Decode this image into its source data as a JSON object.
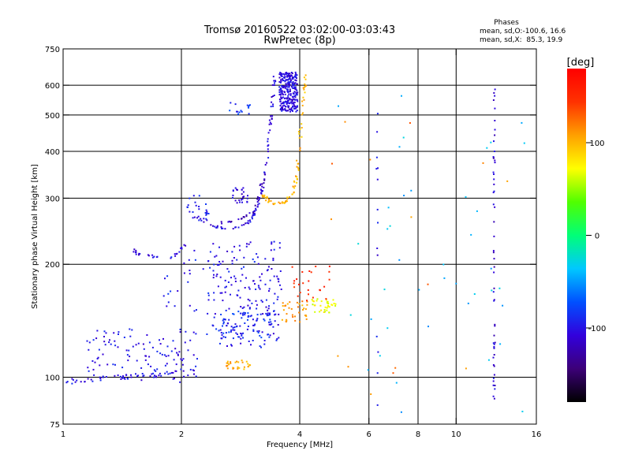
{
  "chart_data": {
    "type": "scatter",
    "title": "Tromsø 20160522 03:02:00-03:03:43",
    "subtitle": "RwPretec (8p)",
    "xlabel": "Frequency [MHz]",
    "ylabel": "Stationary phase Virtual Height [km]",
    "x_scale": "log",
    "y_scale": "log",
    "xlim": [
      1,
      16
    ],
    "ylim": [
      75,
      750
    ],
    "x_ticks": [
      1,
      2,
      4,
      6,
      8,
      10,
      16
    ],
    "y_ticks": [
      75,
      100,
      200,
      300,
      400,
      500,
      600,
      750
    ],
    "grid": true,
    "phase_box": {
      "title": "Phases",
      "line_o": "mean, sd,O:-100.6, 16.6",
      "line_x": "mean, sd,X:  85.3, 19.9"
    },
    "colorbar": {
      "label": "[deg]",
      "range": [
        -180,
        180
      ],
      "ticks": [
        100,
        0,
        -100
      ],
      "palette": [
        "#000000",
        "#3c0078",
        "#3200dc",
        "#0050ff",
        "#00c8ff",
        "#00ff78",
        "#50ff00",
        "#ffff00",
        "#ffa000",
        "#ff3200",
        "#ff0000"
      ]
    },
    "traces": [
      {
        "kind": "curve",
        "pts": [
          [
            1.0,
            97
          ],
          [
            1.1,
            98
          ],
          [
            1.2,
            99
          ],
          [
            1.3,
            100
          ],
          [
            1.4,
            100
          ],
          [
            1.5,
            101
          ],
          [
            1.7,
            101
          ],
          [
            1.9,
            102
          ],
          [
            2.0,
            104
          ]
        ],
        "phase": -100,
        "n": 50,
        "spread": 0.03
      },
      {
        "kind": "cloud",
        "x": [
          1.15,
          2.2
        ],
        "y": [
          97,
          135
        ],
        "phase": -100,
        "n": 120
      },
      {
        "kind": "curve",
        "pts": [
          [
            1.5,
            222
          ],
          [
            1.55,
            212
          ],
          [
            1.65,
            210
          ],
          [
            1.75,
            211
          ]
        ],
        "phase": -110,
        "n": 16,
        "spread": 0.02
      },
      {
        "kind": "curve",
        "pts": [
          [
            1.85,
            208
          ],
          [
            1.95,
            214
          ],
          [
            2.05,
            228
          ]
        ],
        "phase": -110,
        "n": 10,
        "spread": 0.02
      },
      {
        "kind": "curve",
        "pts": [
          [
            2.1,
            272
          ],
          [
            2.3,
            257
          ],
          [
            2.6,
            248
          ],
          [
            2.8,
            250
          ],
          [
            3.0,
            262
          ],
          [
            3.1,
            280
          ],
          [
            3.2,
            310
          ],
          [
            3.3,
            380
          ],
          [
            3.35,
            450
          ],
          [
            3.4,
            520
          ],
          [
            3.45,
            630
          ]
        ],
        "phase": -105,
        "n": 90,
        "spread": 0.015
      },
      {
        "kind": "curve",
        "pts": [
          [
            2.4,
            258
          ],
          [
            2.8,
            262
          ],
          [
            3.0,
            272
          ],
          [
            3.15,
            300
          ],
          [
            3.25,
            350
          ]
        ],
        "phase": -120,
        "n": 30,
        "spread": 0.02
      },
      {
        "kind": "cloud",
        "x": [
          2.05,
          2.35
        ],
        "y": [
          260,
          310
        ],
        "phase": -95,
        "n": 25
      },
      {
        "kind": "cloud",
        "x": [
          2.7,
          3.0
        ],
        "y": [
          290,
          320
        ],
        "phase": -110,
        "n": 25
      },
      {
        "kind": "cloud",
        "x": [
          3.55,
          3.95
        ],
        "y": [
          510,
          650
        ],
        "phase": -105,
        "n": 260
      },
      {
        "kind": "cloud",
        "x": [
          2.6,
          3.0
        ],
        "y": [
          500,
          540
        ],
        "phase": -85,
        "n": 15
      },
      {
        "kind": "curve",
        "pts": [
          [
            3.2,
            310
          ],
          [
            3.4,
            290
          ],
          [
            3.65,
            290
          ],
          [
            3.85,
            310
          ],
          [
            3.95,
            360
          ],
          [
            4.0,
            430
          ],
          [
            4.05,
            500
          ],
          [
            4.1,
            580
          ],
          [
            4.15,
            640
          ]
        ],
        "phase": 100,
        "n": 80,
        "spread": 0.02
      },
      {
        "kind": "cloud",
        "x": [
          2.4,
          3.6
        ],
        "y": [
          120,
          230
        ],
        "phase": -100,
        "n": 200
      },
      {
        "kind": "cloud",
        "x": [
          2.3,
          3.4
        ],
        "y": [
          125,
          150
        ],
        "phase": -85,
        "n": 60
      },
      {
        "kind": "cloud",
        "x": [
          2.6,
          3.0
        ],
        "y": [
          105,
          112
        ],
        "phase": 105,
        "n": 30
      },
      {
        "kind": "cloud",
        "x": [
          3.6,
          4.2
        ],
        "y": [
          140,
          160
        ],
        "phase": 110,
        "n": 35
      },
      {
        "kind": "cloud",
        "x": [
          4.3,
          5.0
        ],
        "y": [
          148,
          162
        ],
        "phase": 70,
        "n": 35
      },
      {
        "kind": "cloud",
        "x": [
          3.8,
          4.8
        ],
        "y": [
          160,
          200
        ],
        "phase": 150,
        "n": 25
      },
      {
        "kind": "cloud",
        "x": [
          1.8,
          2.4
        ],
        "y": [
          150,
          220
        ],
        "phase": -95,
        "n": 30
      },
      {
        "kind": "column",
        "x": 12.5,
        "y": [
          85,
          590
        ],
        "phase": -110,
        "n": 55
      },
      {
        "kind": "column",
        "x": 6.3,
        "y": [
          78,
          610
        ],
        "phase": -100,
        "n": 14
      },
      {
        "kind": "cloud",
        "x": [
          5.0,
          15.0
        ],
        "y": [
          80,
          620
        ],
        "phase": -40,
        "n": 40
      },
      {
        "kind": "cloud",
        "x": [
          4.6,
          14.0
        ],
        "y": [
          80,
          620
        ],
        "phase": 120,
        "n": 15
      }
    ]
  }
}
